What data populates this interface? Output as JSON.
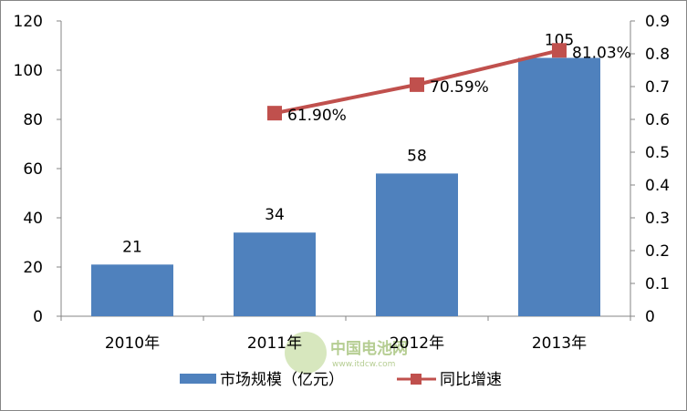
{
  "chart_data": {
    "type": "bar+line",
    "categories": [
      "2010年",
      "2011年",
      "2012年",
      "2013年"
    ],
    "series": [
      {
        "name": "市场规模（亿元）",
        "type": "bar",
        "axis": "left",
        "values": [
          21,
          34,
          58,
          105
        ],
        "labels": [
          "21",
          "34",
          "58",
          "105"
        ],
        "color": "#4F81BD"
      },
      {
        "name": "同比增速",
        "type": "line",
        "axis": "right",
        "values": [
          null,
          0.619,
          0.7059,
          0.8103
        ],
        "labels": [
          "",
          "61.90%",
          "70.59%",
          "81.03%"
        ],
        "color": "#C0504D"
      }
    ],
    "y_left": {
      "lim": [
        0,
        120
      ],
      "ticks": [
        "0",
        "20",
        "40",
        "60",
        "80",
        "100",
        "120"
      ]
    },
    "y_right": {
      "lim": [
        0,
        0.9
      ],
      "ticks": [
        "0",
        "0.1",
        "0.2",
        "0.3",
        "0.4",
        "0.5",
        "0.6",
        "0.7",
        "0.8",
        "0.9"
      ]
    },
    "grid": false,
    "legend_position": "bottom"
  },
  "watermark": {
    "name": "中国电池网",
    "url": "www.itdcw.com"
  }
}
